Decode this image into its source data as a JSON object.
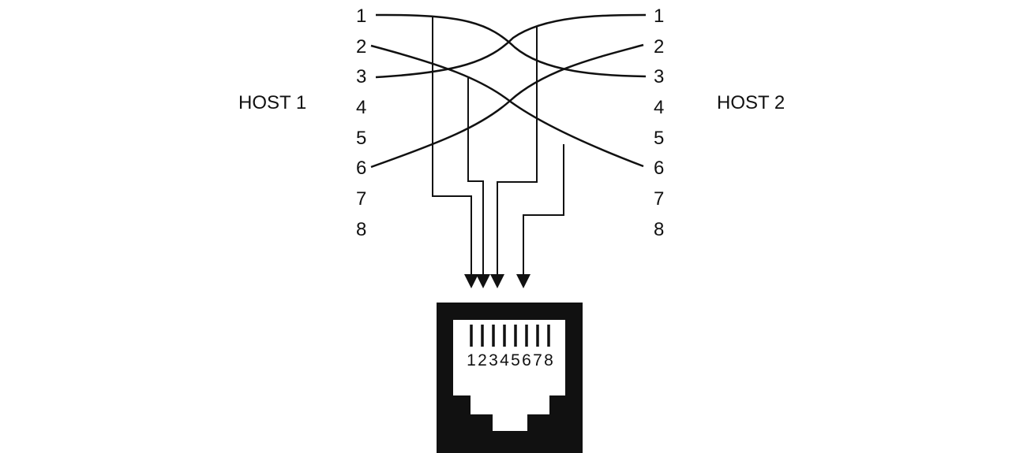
{
  "host1": {
    "label": "HOST 1",
    "pins": [
      "1",
      "2",
      "3",
      "4",
      "5",
      "6",
      "7",
      "8"
    ]
  },
  "host2": {
    "label": "HOST 2",
    "pins": [
      "1",
      "2",
      "3",
      "4",
      "5",
      "6",
      "7",
      "8"
    ]
  },
  "connector": {
    "pin_labels": [
      "1",
      "2",
      "3",
      "4",
      "5",
      "6",
      "7",
      "8"
    ]
  },
  "colors": {
    "line": "#111111",
    "background": "#ffffff"
  },
  "wiring": {
    "crossover_pairs": [
      [
        "1",
        "3"
      ],
      [
        "2",
        "6"
      ],
      [
        "3",
        "1"
      ],
      [
        "6",
        "2"
      ]
    ],
    "tapped_conductors": 4
  }
}
